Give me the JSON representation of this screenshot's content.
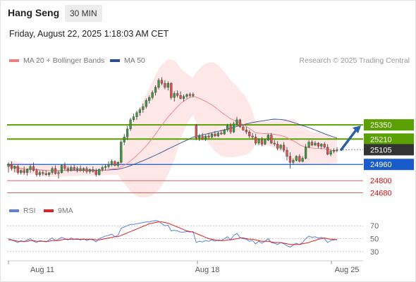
{
  "header": {
    "instrument": "Hang Seng",
    "timeframe": "30 MIN",
    "datetime": "Friday, August 22, 2025 1:18:03 AM CET"
  },
  "legend": {
    "ma20_label": "MA 20 + Bollinger Bands",
    "ma50_label": "MA 50",
    "research": "Research © 2025 Trading Central",
    "rsi_label": "RSI",
    "rsi_ma_label": "9MA"
  },
  "colors": {
    "ma20": "#f08080",
    "ma50": "#2e4f8f",
    "bollinger_fill": "#fde3e3",
    "resistance": "#5aa000",
    "pivot": "#1a5bcc",
    "support": "#e86060",
    "last_price_bg": "#333333",
    "candle_up": "#3f9a3f",
    "candle_down": "#d9534f",
    "rsi_line": "#5b82d4",
    "rsi_ma": "#dd2222",
    "arrow": "#2e5fa5"
  },
  "chart_data": [
    {
      "type": "candlestick",
      "title": "Hang Seng",
      "timeframe": "30 MIN",
      "x_tick_labels": [
        "Aug 11",
        "Aug 18",
        "Aug 25"
      ],
      "ylim": [
        24600,
        25900
      ],
      "levels": [
        {
          "label": "25350",
          "value": 25350,
          "kind": "resistance"
        },
        {
          "label": "25210",
          "value": 25210,
          "kind": "resistance"
        },
        {
          "label": "25105",
          "value": 25105,
          "kind": "last_price"
        },
        {
          "label": "24960",
          "value": 24960,
          "kind": "pivot"
        },
        {
          "label": "24800",
          "value": 24800,
          "kind": "support"
        },
        {
          "label": "24680",
          "value": 24680,
          "kind": "support"
        }
      ],
      "ohlc": [
        [
          24940,
          24980,
          24880,
          24960
        ],
        [
          24960,
          24990,
          24900,
          24920
        ],
        [
          24920,
          24950,
          24880,
          24940
        ],
        [
          24940,
          24960,
          24860,
          24880
        ],
        [
          24880,
          24910,
          24860,
          24900
        ],
        [
          24900,
          24940,
          24860,
          24880
        ],
        [
          24880,
          24920,
          24850,
          24910
        ],
        [
          24910,
          24960,
          24880,
          24940
        ],
        [
          24940,
          24980,
          24890,
          24900
        ],
        [
          24900,
          24920,
          24840,
          24860
        ],
        [
          24860,
          24900,
          24840,
          24880
        ],
        [
          24880,
          24900,
          24850,
          24870
        ],
        [
          24870,
          24900,
          24850,
          24860
        ],
        [
          24860,
          24880,
          24840,
          24880
        ],
        [
          24880,
          24940,
          24860,
          24920
        ],
        [
          24920,
          24950,
          24860,
          24870
        ],
        [
          24870,
          24900,
          24820,
          24880
        ],
        [
          24880,
          24960,
          24870,
          24950
        ],
        [
          24950,
          24980,
          24900,
          24920
        ],
        [
          24920,
          24940,
          24880,
          24900
        ],
        [
          24900,
          24950,
          24890,
          24930
        ],
        [
          24930,
          24960,
          24900,
          24910
        ],
        [
          24910,
          24940,
          24880,
          24920
        ],
        [
          24920,
          24950,
          24890,
          24900
        ],
        [
          24900,
          24930,
          24880,
          24920
        ],
        [
          24920,
          24940,
          24870,
          24890
        ],
        [
          24890,
          24920,
          24870,
          24910
        ],
        [
          24910,
          24940,
          24880,
          24890
        ],
        [
          24890,
          24920,
          24840,
          24860
        ],
        [
          24860,
          24920,
          24850,
          24910
        ],
        [
          24910,
          24950,
          24890,
          24930
        ],
        [
          24930,
          24960,
          24900,
          24940
        ],
        [
          24940,
          24990,
          24920,
          24960
        ],
        [
          24960,
          25010,
          24940,
          24990
        ],
        [
          24990,
          25000,
          24940,
          24950
        ],
        [
          24950,
          24990,
          24930,
          24980
        ],
        [
          24980,
          25200,
          24970,
          25180
        ],
        [
          25180,
          25260,
          25150,
          25230
        ],
        [
          25230,
          25340,
          25200,
          25310
        ],
        [
          25310,
          25420,
          25290,
          25400
        ],
        [
          25400,
          25460,
          25380,
          25430
        ],
        [
          25430,
          25490,
          25400,
          25470
        ],
        [
          25470,
          25520,
          25440,
          25500
        ],
        [
          25500,
          25560,
          25470,
          25530
        ],
        [
          25530,
          25610,
          25510,
          25590
        ],
        [
          25590,
          25640,
          25560,
          25620
        ],
        [
          25620,
          25690,
          25600,
          25670
        ],
        [
          25670,
          25740,
          25640,
          25720
        ],
        [
          25720,
          25810,
          25700,
          25790
        ],
        [
          25790,
          25820,
          25740,
          25760
        ],
        [
          25760,
          25790,
          25700,
          25720
        ],
        [
          25720,
          25780,
          25690,
          25760
        ],
        [
          25760,
          25770,
          25600,
          25620
        ],
        [
          25620,
          25680,
          25580,
          25660
        ],
        [
          25660,
          25690,
          25620,
          25640
        ],
        [
          25640,
          25680,
          25600,
          25610
        ],
        [
          25610,
          25650,
          25580,
          25630
        ],
        [
          25630,
          25660,
          25610,
          25650
        ],
        [
          25650,
          25670,
          25620,
          25640
        ],
        [
          25640,
          25670,
          25620,
          25650
        ],
        [
          25350,
          25360,
          25200,
          25220
        ],
        [
          25220,
          25260,
          25190,
          25240
        ],
        [
          25240,
          25270,
          25200,
          25210
        ],
        [
          25210,
          25250,
          25190,
          25240
        ],
        [
          25240,
          25270,
          25210,
          25230
        ],
        [
          25230,
          25270,
          25220,
          25260
        ],
        [
          25260,
          25290,
          25230,
          25240
        ],
        [
          25240,
          25280,
          25230,
          25270
        ],
        [
          25270,
          25300,
          25250,
          25260
        ],
        [
          25260,
          25310,
          25250,
          25300
        ],
        [
          25300,
          25360,
          25280,
          25340
        ],
        [
          25340,
          25370,
          25260,
          25280
        ],
        [
          25280,
          25380,
          25270,
          25360
        ],
        [
          25360,
          25430,
          25340,
          25400
        ],
        [
          25400,
          25410,
          25320,
          25330
        ],
        [
          25330,
          25350,
          25290,
          25300
        ],
        [
          25300,
          25330,
          25260,
          25280
        ],
        [
          25280,
          25300,
          25220,
          25240
        ],
        [
          25240,
          25270,
          25210,
          25230
        ],
        [
          25230,
          25260,
          25150,
          25170
        ],
        [
          25170,
          25220,
          25150,
          25200
        ],
        [
          25200,
          25230,
          25140,
          25160
        ],
        [
          25160,
          25210,
          25150,
          25200
        ],
        [
          25200,
          25260,
          25190,
          25250
        ],
        [
          25250,
          25270,
          25160,
          25170
        ],
        [
          25170,
          25200,
          25140,
          25160
        ],
        [
          25160,
          25190,
          25100,
          25120
        ],
        [
          25120,
          25160,
          25100,
          25150
        ],
        [
          25150,
          25180,
          25080,
          25100
        ],
        [
          25100,
          25130,
          25000,
          25040
        ],
        [
          25040,
          25080,
          24920,
          24980
        ],
        [
          24980,
          25020,
          24960,
          25000
        ],
        [
          25000,
          25050,
          24990,
          25040
        ],
        [
          25040,
          25060,
          24980,
          24990
        ],
        [
          24990,
          25040,
          24980,
          25020
        ],
        [
          25020,
          25160,
          25010,
          25130
        ],
        [
          25130,
          25200,
          25120,
          25180
        ],
        [
          25180,
          25200,
          25140,
          25150
        ],
        [
          25150,
          25190,
          25140,
          25170
        ],
        [
          25170,
          25180,
          25120,
          25140
        ],
        [
          25140,
          25170,
          25110,
          25160
        ],
        [
          25160,
          25180,
          25120,
          25130
        ],
        [
          25130,
          25160,
          25050,
          25060
        ],
        [
          25060,
          25110,
          25040,
          25090
        ],
        [
          25090,
          25120,
          25070,
          25100
        ],
        [
          25100,
          25130,
          25080,
          25105
        ]
      ],
      "projection": {
        "from": 25105,
        "to": 25350,
        "direction": "up"
      }
    },
    {
      "type": "line",
      "title": "RSI",
      "ylim": [
        20,
        80
      ],
      "y_tick_labels": [
        "70",
        "50",
        "30"
      ],
      "reference_levels": [
        70,
        50,
        30
      ],
      "series": [
        {
          "name": "RSI",
          "values": [
            50,
            48,
            46,
            44,
            47,
            45,
            48,
            50,
            46,
            44,
            47,
            46,
            45,
            48,
            51,
            47,
            49,
            52,
            50,
            48,
            51,
            49,
            50,
            48,
            50,
            47,
            49,
            48,
            45,
            50,
            52,
            54,
            55,
            57,
            53,
            55,
            66,
            68,
            70,
            72,
            72,
            73,
            74,
            75,
            76,
            76,
            77,
            78,
            77,
            73,
            70,
            71,
            62,
            63,
            62,
            60,
            60,
            61,
            60,
            61,
            44,
            46,
            45,
            47,
            46,
            48,
            46,
            48,
            47,
            50,
            53,
            48,
            55,
            58,
            52,
            50,
            49,
            46,
            47,
            42,
            46,
            43,
            46,
            50,
            44,
            43,
            41,
            44,
            42,
            39,
            37,
            40,
            43,
            41,
            44,
            50,
            54,
            52,
            53,
            51,
            52,
            50,
            44,
            47,
            48,
            49
          ]
        },
        {
          "name": "9MA",
          "values": [
            48,
            48,
            47,
            46,
            46,
            46,
            46,
            47,
            47,
            46,
            46,
            46,
            46,
            46,
            47,
            47,
            47,
            48,
            49,
            49,
            49,
            49,
            49,
            49,
            49,
            49,
            49,
            49,
            48,
            48,
            49,
            50,
            51,
            52,
            53,
            53,
            55,
            57,
            59,
            61,
            63,
            65,
            67,
            69,
            71,
            73,
            74,
            75,
            76,
            76,
            75,
            74,
            72,
            70,
            68,
            66,
            64,
            62,
            61,
            60,
            58,
            56,
            54,
            52,
            50,
            49,
            48,
            47,
            47,
            47,
            48,
            48,
            49,
            50,
            51,
            51,
            50,
            49,
            49,
            48,
            47,
            46,
            46,
            46,
            45,
            44,
            44,
            44,
            43,
            42,
            41,
            41,
            41,
            41,
            42,
            43,
            44,
            46,
            47,
            49,
            50,
            51,
            50,
            49,
            49,
            48
          ]
        }
      ]
    }
  ]
}
